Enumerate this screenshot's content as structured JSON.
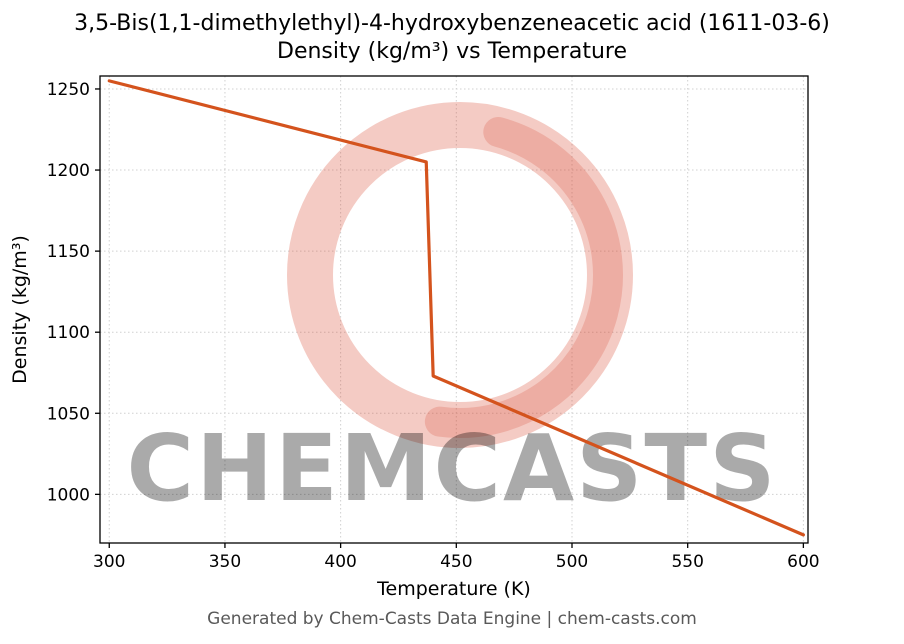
{
  "watermark": {
    "text": "CHEMCASTS",
    "color": "#d6452c"
  },
  "footer": {
    "text": "Generated by Chem-Casts Data Engine | chem-casts.com"
  },
  "chart_data": {
    "type": "line",
    "title": "3,5-Bis(1,1-dimethylethyl)-4-hydroxybenzeneacetic acid (1611-03-6)",
    "subtitle": "Density (kg/m³) vs Temperature",
    "xlabel": "Temperature (K)",
    "ylabel": "Density (kg/m³)",
    "xlim": [
      296,
      602
    ],
    "ylim": [
      970,
      1258
    ],
    "xticks": [
      300,
      350,
      400,
      450,
      500,
      550,
      600
    ],
    "yticks": [
      1000,
      1050,
      1100,
      1150,
      1200,
      1250
    ],
    "grid": true,
    "grid_color": "#d0d0d0",
    "line_color": "#d4531d",
    "legend": "none",
    "series": [
      {
        "name": "Density",
        "points": [
          [
            300,
            1255
          ],
          [
            437,
            1205
          ],
          [
            440,
            1073
          ],
          [
            600,
            975
          ]
        ]
      }
    ]
  }
}
